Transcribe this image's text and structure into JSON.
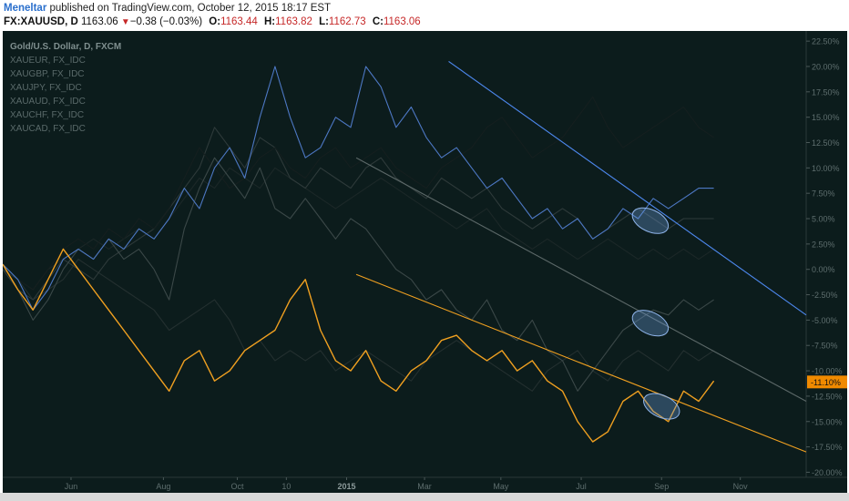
{
  "header": {
    "author": "Meneltar",
    "published_text": " published on TradingView.com, October 12, 2015 18:17 EST",
    "symbol": "FX:XAUUSD, D",
    "last": "1163.06",
    "down_arrow": "▼",
    "change": "−0.38 (−0.03%)",
    "o_label": "O:",
    "o_value": "1163.44",
    "h_label": "H:",
    "h_value": "1163.82",
    "l_label": "L:",
    "l_value": "1162.73",
    "c_label": "C:",
    "c_value": "1163.06"
  },
  "legend": {
    "title": "Gold/U.S. Dollar, D, FXCM",
    "items": [
      "XAUEUR, FX_IDC",
      "XAUGBP, FX_IDC",
      "XAUJPY, FX_IDC",
      "XAUAUD, FX_IDC",
      "XAUCHF, FX_IDC",
      "XAUCAD, FX_IDC"
    ]
  },
  "colors": {
    "background": "#0c1c1c",
    "gold": "#f0a020",
    "blue": "#4d78c4",
    "gray_series": "#3b4848",
    "dark_series": "#151f1f",
    "trend_blue": "#4d88ee",
    "trend_gray": "#5c6868",
    "trend_orange": "#f0a020",
    "ellipse": "#6a9ad8"
  },
  "chart_data": {
    "type": "line",
    "x_labels": [
      "Jun",
      "Aug",
      "Oct",
      "10",
      "2015",
      "Mar",
      "May",
      "Jul",
      "Sep",
      "Nov"
    ],
    "y_ticks": [
      "22.50%",
      "20.00%",
      "17.50%",
      "15.00%",
      "12.50%",
      "10.00%",
      "7.50%",
      "5.00%",
      "2.50%",
      "0.00%",
      "-2.50%",
      "-5.00%",
      "-7.50%",
      "-10.00%",
      "-12.50%",
      "-15.00%",
      "-17.50%",
      "-20.00%"
    ],
    "ylim": [
      -20.5,
      23.5
    ],
    "last_value_label": "-11.10%",
    "series": [
      {
        "name": "Gold/U.S. Dollar, D, FXCM",
        "color": "#f0a020",
        "values": [
          0.5,
          -2,
          -4,
          -1,
          2,
          0,
          -2,
          -4,
          -6,
          -8,
          -10,
          -12,
          -9,
          -8,
          -11,
          -10,
          -8,
          -7,
          -6,
          -3,
          -1,
          -6,
          -9,
          -10,
          -8,
          -11,
          -12,
          -10,
          -9,
          -7,
          -6.5,
          -8,
          -9,
          -8,
          -10,
          -9,
          -11,
          -12,
          -15,
          -17,
          -16,
          -13,
          -12,
          -14,
          -15,
          -12,
          -13,
          -11
        ]
      },
      {
        "name": "XAUEUR, FX_IDC",
        "color": "#4d78c4",
        "values": [
          0.5,
          -1,
          -4,
          -2,
          1,
          2,
          1,
          3,
          2,
          4,
          3,
          5,
          8,
          6,
          10,
          12,
          9,
          15,
          20,
          15,
          11,
          12,
          15,
          14,
          20,
          18,
          14,
          16,
          13,
          11,
          12,
          10,
          8,
          9,
          7,
          5,
          6,
          4,
          5,
          3,
          4,
          6,
          5,
          7,
          6,
          7,
          8,
          8
        ]
      },
      {
        "name": "XAUGBP, FX_IDC",
        "color": "#3b4848",
        "values": [
          0.5,
          -2,
          -5,
          -3,
          0,
          2,
          1,
          3,
          1,
          2,
          0,
          -3,
          4,
          8,
          11,
          9,
          7,
          10,
          6,
          5,
          7,
          5,
          3,
          5,
          4,
          2,
          0,
          -1,
          -3,
          -2,
          -4,
          -5,
          -3,
          -6,
          -7,
          -5,
          -8,
          -9,
          -12,
          -10,
          -8,
          -6,
          -5,
          -4,
          -4.5,
          -3,
          -4,
          -3
        ]
      },
      {
        "name": "XAUJPY, FX_IDC",
        "color": "#151f1f",
        "values": [
          0.5,
          -1,
          -2,
          0,
          2,
          3,
          2,
          4,
          3,
          5,
          4,
          6,
          9,
          12,
          10,
          8,
          9,
          11,
          12,
          10,
          9,
          11,
          12,
          10,
          11,
          12,
          10,
          9,
          8,
          10,
          11,
          12,
          14,
          15,
          13,
          11,
          12,
          13,
          15,
          17,
          14,
          12,
          13,
          14,
          15,
          16,
          14,
          13
        ]
      },
      {
        "name": "XAUAUD, FX_IDC",
        "color": "#2e3a3a",
        "values": [
          0,
          -2,
          -3,
          -1,
          1,
          0,
          -1,
          1,
          2,
          3,
          4,
          6,
          8,
          10,
          14,
          12,
          10,
          13,
          12,
          9,
          8,
          10,
          9,
          8,
          10,
          11,
          9,
          8,
          7,
          9,
          8,
          7,
          8,
          6,
          5,
          4,
          5,
          6,
          5,
          3,
          4,
          5,
          6,
          5,
          4,
          5,
          5,
          5
        ]
      },
      {
        "name": "XAUCHF, FX_IDC",
        "color": "#243030",
        "values": [
          0,
          -1,
          -3,
          -2,
          -1,
          1,
          0,
          -1,
          -2,
          -3,
          -4,
          -6,
          -5,
          -4,
          -3,
          -5,
          -8,
          -7,
          -9,
          -8,
          -9,
          -8,
          -10,
          -9,
          -8,
          -9,
          -10,
          -11,
          -9,
          -8,
          -7,
          -8,
          -9,
          -10,
          -11,
          -12,
          -10,
          -9,
          -8,
          -10,
          -11,
          -9,
          -8,
          -9,
          -10,
          -8,
          -9,
          -8
        ]
      },
      {
        "name": "XAUCAD, FX_IDC",
        "color": "#1c2828",
        "values": [
          0.5,
          -1,
          -2,
          0,
          1,
          2,
          3,
          2,
          3,
          4,
          3,
          5,
          7,
          9,
          8,
          10,
          9,
          8,
          10,
          9,
          8,
          7,
          6,
          7,
          8,
          9,
          8,
          7,
          6,
          5,
          4,
          5,
          6,
          4,
          3,
          2,
          3,
          2,
          1,
          2,
          3,
          2,
          1,
          2,
          1,
          2,
          1,
          2
        ]
      }
    ],
    "trendlines": [
      {
        "color": "#4d88ee",
        "from": [
          0.555,
          20.5
        ],
        "to": [
          1.0,
          -4.5
        ]
      },
      {
        "color": "#5c6868",
        "from": [
          0.44,
          11.0
        ],
        "to": [
          1.0,
          -13.0
        ]
      },
      {
        "color": "#f0a020",
        "from": [
          0.44,
          -0.5
        ],
        "to": [
          1.0,
          -18.0
        ]
      }
    ],
    "ellipses": [
      {
        "cx": 0.806,
        "cy": 4.8
      },
      {
        "cx": 0.806,
        "cy": -5.3
      },
      {
        "cx": 0.82,
        "cy": -13.5
      }
    ]
  }
}
